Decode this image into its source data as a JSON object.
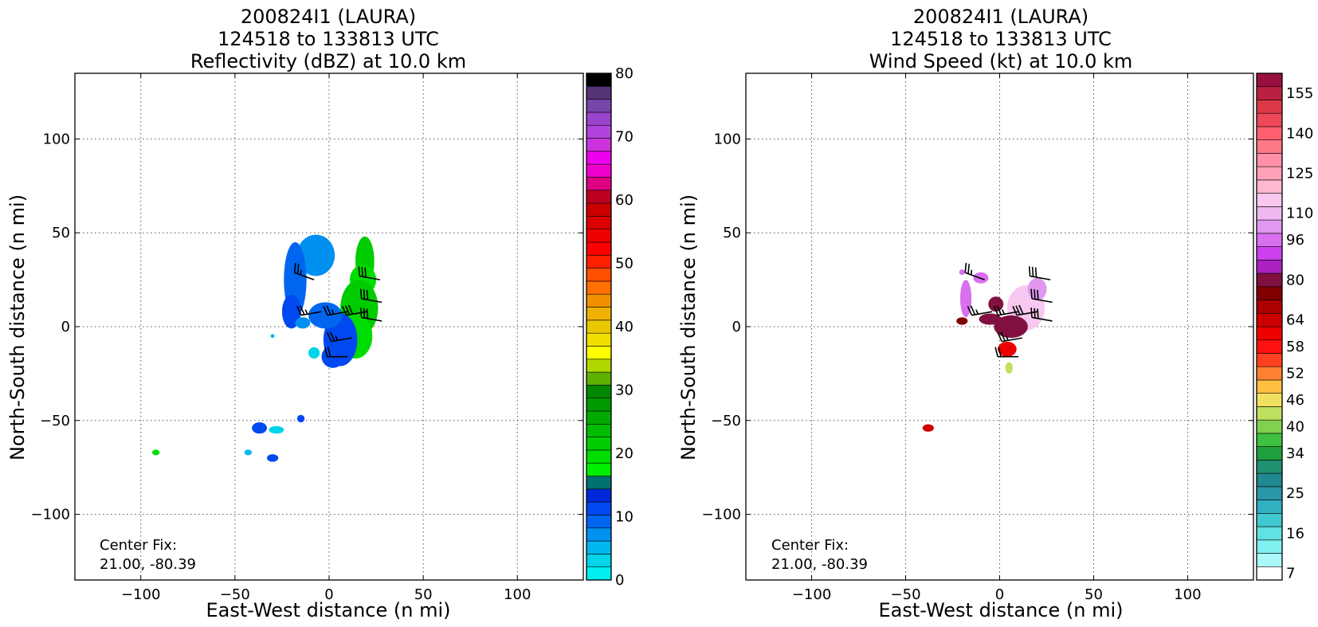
{
  "chart_data": [
    {
      "type": "heatmap",
      "title_lines": [
        "200824I1 (LAURA)",
        "124518 to 133813 UTC",
        "Reflectivity (dBZ) at 10.0 km"
      ],
      "xlabel": "East-West distance (n mi)",
      "ylabel": "North-South distance (n mi)",
      "xlim": [
        -135,
        135
      ],
      "ylim": [
        -135,
        135
      ],
      "xticks": [
        -100,
        -50,
        0,
        50,
        100
      ],
      "yticks": [
        -100,
        -50,
        0,
        50,
        100
      ],
      "xtick_labels": [
        "−100",
        "−50",
        "0",
        "50",
        "100"
      ],
      "ytick_labels": [
        "−100",
        "−50",
        "0",
        "50",
        "100"
      ],
      "grid": true,
      "annotation_lines": [
        "Center Fix:",
        "21.00, -80.39"
      ],
      "colorbar": {
        "min": 0,
        "max": 80,
        "ticks": [
          0,
          10,
          20,
          30,
          40,
          50,
          60,
          70,
          80
        ],
        "colors": [
          "#00eeee",
          "#00d4e8",
          "#00b8ee",
          "#0090f0",
          "#0066f0",
          "#0048f0",
          "#0028d8",
          "#007070",
          "#00ee00",
          "#00dd00",
          "#00cc00",
          "#00bb00",
          "#00aa00",
          "#009900",
          "#008800",
          "#60b000",
          "#b0d800",
          "#ffff00",
          "#f0e000",
          "#e8c800",
          "#f0b000",
          "#f09000",
          "#ff7000",
          "#ff5000",
          "#ff2000",
          "#ff0000",
          "#ee0000",
          "#dd0000",
          "#cc0000",
          "#bb0020",
          "#dd0080",
          "#ee00cc",
          "#ee00ee",
          "#cc33dd",
          "#b044dd",
          "#9944cc",
          "#7744aa",
          "#553377",
          "#000000"
        ]
      },
      "echo_blobs": [
        {
          "x": -7,
          "y": 38,
          "rx": 10,
          "ry": 11,
          "value": 8
        },
        {
          "x": -18,
          "y": 25,
          "rx": 6,
          "ry": 20,
          "value": 10
        },
        {
          "x": -20,
          "y": 8,
          "rx": 5,
          "ry": 9,
          "value": 12
        },
        {
          "x": 19,
          "y": 35,
          "rx": 5,
          "ry": 13,
          "value": 22
        },
        {
          "x": 18,
          "y": 25,
          "rx": 7,
          "ry": 8,
          "value": 20
        },
        {
          "x": 16,
          "y": 10,
          "rx": 10,
          "ry": 15,
          "value": 21
        },
        {
          "x": 14,
          "y": -5,
          "rx": 9,
          "ry": 12,
          "value": 20
        },
        {
          "x": 6,
          "y": -7,
          "rx": 9,
          "ry": 14,
          "value": 12
        },
        {
          "x": -2,
          "y": 6,
          "rx": 9,
          "ry": 7,
          "value": 10
        },
        {
          "x": 2,
          "y": -16,
          "rx": 6,
          "ry": 6,
          "value": 11
        },
        {
          "x": -8,
          "y": -14,
          "rx": 3,
          "ry": 3,
          "value": 3
        },
        {
          "x": -14,
          "y": 2,
          "rx": 4,
          "ry": 3,
          "value": 7
        },
        {
          "x": -37,
          "y": -54,
          "rx": 4,
          "ry": 3,
          "value": 12
        },
        {
          "x": -28,
          "y": -55,
          "rx": 4,
          "ry": 2,
          "value": 3
        },
        {
          "x": -15,
          "y": -49,
          "rx": 2,
          "ry": 2,
          "value": 12
        },
        {
          "x": -30,
          "y": -70,
          "rx": 3,
          "ry": 2,
          "value": 12
        },
        {
          "x": -43,
          "y": -67,
          "rx": 2,
          "ry": 1.5,
          "value": 5
        },
        {
          "x": -92,
          "y": -67,
          "rx": 2,
          "ry": 1.5,
          "value": 20
        },
        {
          "x": -30,
          "y": -5,
          "rx": 1,
          "ry": 1,
          "value": 5
        }
      ],
      "wind_barbs": [
        {
          "x": -8,
          "y": 25,
          "dir": 290,
          "speed": 25
        },
        {
          "x": 27,
          "y": 25,
          "dir": 280,
          "speed": 30
        },
        {
          "x": 28,
          "y": 13,
          "dir": 280,
          "speed": 30
        },
        {
          "x": -4,
          "y": 8,
          "dir": 260,
          "speed": 25
        },
        {
          "x": 10,
          "y": 8,
          "dir": 260,
          "speed": 25
        },
        {
          "x": 20,
          "y": 8,
          "dir": 260,
          "speed": 30
        },
        {
          "x": 28,
          "y": 3,
          "dir": 280,
          "speed": 30
        },
        {
          "x": 12,
          "y": -6,
          "dir": 260,
          "speed": 25
        },
        {
          "x": 10,
          "y": -16,
          "dir": 270,
          "speed": 20
        }
      ]
    },
    {
      "type": "heatmap",
      "title_lines": [
        "200824I1 (LAURA)",
        "124518 to 133813 UTC",
        "Wind Speed (kt) at 10.0 km"
      ],
      "xlabel": "East-West distance (n mi)",
      "ylabel": "North-South distance (n mi)",
      "xlim": [
        -135,
        135
      ],
      "ylim": [
        -135,
        135
      ],
      "xticks": [
        -100,
        -50,
        0,
        50,
        100
      ],
      "yticks": [
        -100,
        -50,
        0,
        50,
        100
      ],
      "xtick_labels": [
        "−100",
        "−50",
        "0",
        "50",
        "100"
      ],
      "ytick_labels": [
        "−100",
        "−50",
        "0",
        "50",
        "100"
      ],
      "grid": true,
      "annotation_lines": [
        "Center Fix:",
        "21.00, -80.39"
      ],
      "colorbar": {
        "tick_labels": [
          "7",
          "16",
          "25",
          "34",
          "40",
          "46",
          "52",
          "58",
          "64",
          "80",
          "96",
          "110",
          "125",
          "140",
          "155"
        ],
        "tick_bins": [
          0,
          3,
          6,
          9,
          11,
          13,
          15,
          17,
          19,
          22,
          25,
          27,
          30,
          33,
          36
        ],
        "colors": [
          "#ffffff",
          "#aaf8f8",
          "#80f0f0",
          "#60e0e0",
          "#40c8d0",
          "#30b0c0",
          "#2898a8",
          "#208890",
          "#209070",
          "#20a040",
          "#40c040",
          "#80d050",
          "#c0e060",
          "#f0e060",
          "#ffc040",
          "#ff8030",
          "#ff4020",
          "#ff1010",
          "#ee0000",
          "#cc0000",
          "#aa0000",
          "#800000",
          "#801040",
          "#aa20c0",
          "#cc40ee",
          "#d870f0",
          "#e098f0",
          "#f0b8f0",
          "#f8c8f0",
          "#ffb8d0",
          "#ffa0b8",
          "#ff90a8",
          "#ff7888",
          "#ff6070",
          "#ee4858",
          "#dd3848",
          "#bb2040",
          "#991040"
        ],
        "top_label": ""
      },
      "echo_blobs": [
        {
          "x": -18,
          "y": 15,
          "rx": 3,
          "ry": 10,
          "value": 25
        },
        {
          "x": -10,
          "y": 26,
          "rx": 4,
          "ry": 3,
          "value": 25
        },
        {
          "x": -2,
          "y": 12,
          "rx": 4,
          "ry": 4,
          "value": 22
        },
        {
          "x": 14,
          "y": 10,
          "rx": 10,
          "ry": 12,
          "value": 28
        },
        {
          "x": 20,
          "y": 20,
          "rx": 5,
          "ry": 6,
          "value": 26
        },
        {
          "x": 6,
          "y": 0,
          "rx": 9,
          "ry": 6,
          "value": 22
        },
        {
          "x": -5,
          "y": 4,
          "rx": 6,
          "ry": 3,
          "value": 22
        },
        {
          "x": -20,
          "y": 3,
          "rx": 3,
          "ry": 2,
          "value": 21
        },
        {
          "x": 4,
          "y": -12,
          "rx": 5,
          "ry": 4,
          "value": 18
        },
        {
          "x": 5,
          "y": -22,
          "rx": 2,
          "ry": 3,
          "value": 12
        },
        {
          "x": -38,
          "y": -54,
          "rx": 3,
          "ry": 2,
          "value": 19
        },
        {
          "x": -20,
          "y": 29,
          "rx": 1.5,
          "ry": 1.5,
          "value": 25
        }
      ],
      "wind_barbs": [
        {
          "x": -8,
          "y": 25,
          "dir": 290,
          "speed": 25
        },
        {
          "x": 27,
          "y": 25,
          "dir": 280,
          "speed": 30
        },
        {
          "x": 28,
          "y": 13,
          "dir": 280,
          "speed": 30
        },
        {
          "x": -4,
          "y": 8,
          "dir": 260,
          "speed": 25
        },
        {
          "x": 10,
          "y": 8,
          "dir": 260,
          "speed": 25
        },
        {
          "x": 20,
          "y": 8,
          "dir": 260,
          "speed": 30
        },
        {
          "x": 28,
          "y": 3,
          "dir": 280,
          "speed": 30
        },
        {
          "x": 12,
          "y": -6,
          "dir": 260,
          "speed": 25
        },
        {
          "x": 10,
          "y": -16,
          "dir": 270,
          "speed": 20
        }
      ]
    }
  ]
}
